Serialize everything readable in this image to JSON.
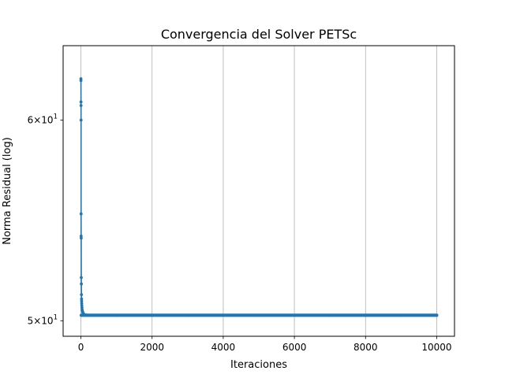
{
  "chart_data": {
    "type": "line",
    "title": "Convergencia del Solver PETSc",
    "xlabel": "Iteraciones",
    "ylabel": "Norma Residual (log)",
    "xlim": [
      -500,
      10500
    ],
    "ylim": [
      49.3,
      64.2
    ],
    "yscale": "log",
    "grid": "vertical",
    "legend": "none",
    "marker": "point",
    "x_ticks": [
      0,
      2000,
      4000,
      6000,
      8000,
      10000
    ],
    "x_tick_labels": [
      "0",
      "2000",
      "4000",
      "6000",
      "8000",
      "10000"
    ],
    "y_ticks": [
      {
        "value": 60,
        "mantissa": "6",
        "base": "10",
        "exponent": "1"
      },
      {
        "value": 50,
        "mantissa": "5",
        "base": "10",
        "exponent": "1"
      }
    ],
    "colors": {
      "line": "#1f77b4",
      "grid": "#b0b0b0",
      "axes": "#000000"
    },
    "series": [
      {
        "x": [
          0,
          1,
          2,
          3,
          4,
          5,
          6,
          8,
          10,
          12,
          15,
          18,
          20,
          22,
          25,
          30,
          35,
          40,
          50,
          60,
          80,
          100,
          150,
          200,
          300,
          500,
          1000,
          2000,
          3000,
          4000,
          5000,
          6000,
          7000,
          8000,
          9000,
          10000
        ],
        "y": [
          62.3,
          62.2,
          61.0,
          60.8,
          60.0,
          55.1,
          54.0,
          53.9,
          52.0,
          51.7,
          51.2,
          51.0,
          50.9,
          50.8,
          50.7,
          50.6,
          50.5,
          50.45,
          50.4,
          50.35,
          50.3,
          50.28,
          50.26,
          50.25,
          50.25,
          50.25,
          50.25,
          50.25,
          50.25,
          50.25,
          50.25,
          50.25,
          50.25,
          50.25,
          50.25,
          50.25
        ]
      }
    ]
  }
}
